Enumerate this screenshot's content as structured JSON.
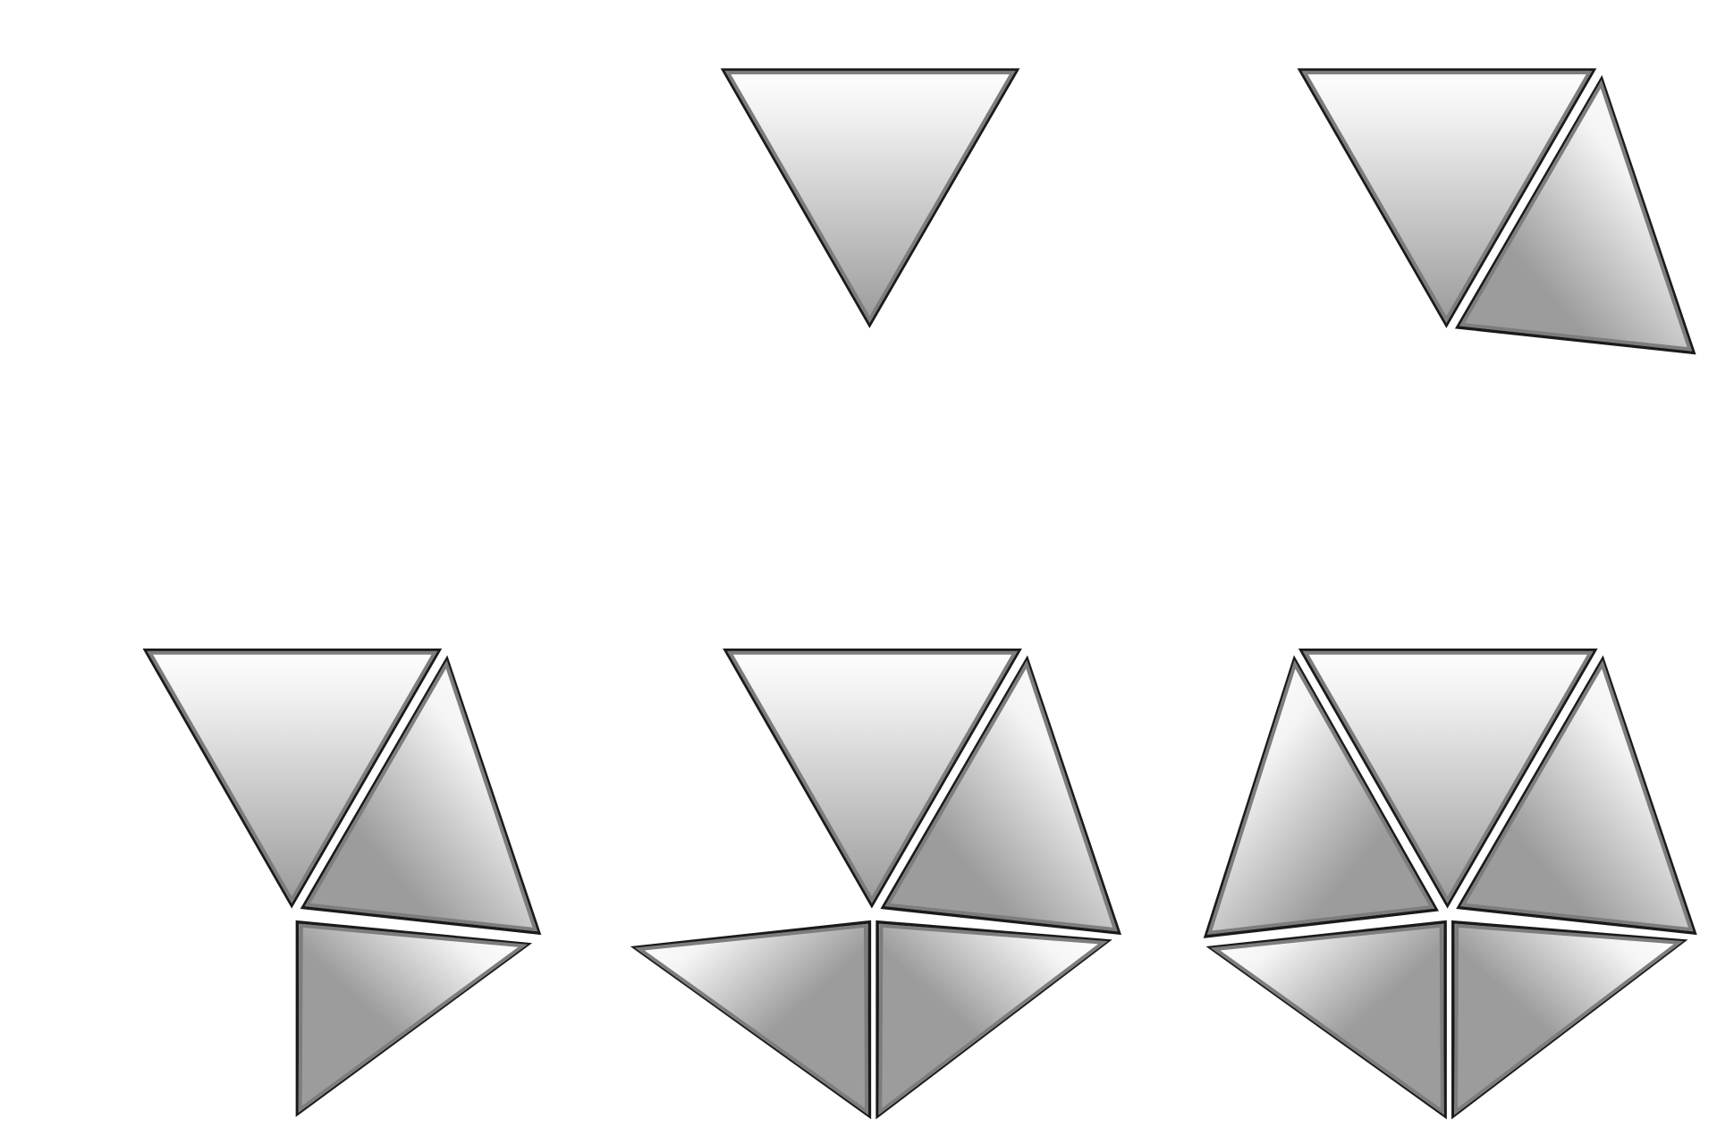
{
  "figure": {
    "panel_count": 6,
    "panels": [
      {
        "step": 1,
        "triangle_count": 0
      },
      {
        "step": 2,
        "triangle_count": 1
      },
      {
        "step": 3,
        "triangle_count": 2
      },
      {
        "step": 4,
        "triangle_count": 3
      },
      {
        "step": 5,
        "triangle_count": 4
      },
      {
        "step": 6,
        "triangle_count": 5
      }
    ]
  },
  "colors": {
    "background": "#ffffff",
    "outline": "#1a1a1a",
    "inner_edge": "#7d7d7d",
    "fill_light": "#ffffff",
    "fill_dark": "#9a9a9a"
  }
}
